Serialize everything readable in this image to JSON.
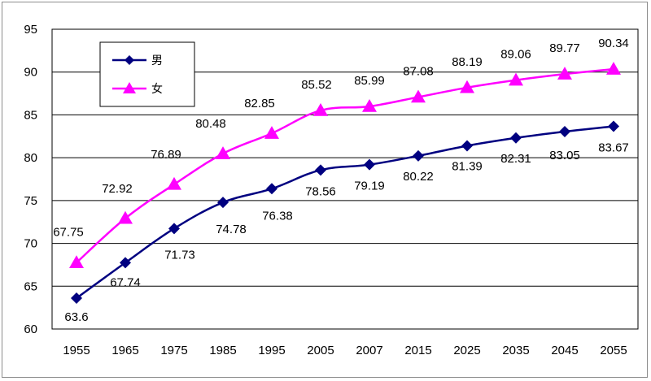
{
  "chart_data": {
    "type": "line",
    "categories": [
      "1955",
      "1965",
      "1975",
      "1985",
      "1995",
      "2005",
      "2007",
      "2015",
      "2025",
      "2035",
      "2045",
      "2055"
    ],
    "series": [
      {
        "name": "男",
        "color": "#000080",
        "marker": "diamond",
        "values": [
          63.6,
          67.74,
          71.73,
          74.78,
          76.38,
          78.56,
          79.19,
          80.22,
          81.39,
          82.31,
          83.05,
          83.67
        ],
        "labels": [
          "63.6",
          "67.74",
          "71.73",
          "74.78",
          "76.38",
          "78.56",
          "79.19",
          "80.22",
          "81.39",
          "82.31",
          "83.05",
          "83.67"
        ]
      },
      {
        "name": "女",
        "color": "#ff00ff",
        "marker": "triangle",
        "values": [
          67.75,
          72.92,
          76.89,
          80.48,
          82.85,
          85.52,
          85.99,
          87.08,
          88.19,
          89.06,
          89.77,
          90.34
        ],
        "labels": [
          "67.75",
          "72.92",
          "76.89",
          "80.48",
          "82.85",
          "85.52",
          "85.99",
          "87.08",
          "88.19",
          "89.06",
          "89.77",
          "90.34"
        ]
      }
    ],
    "ylim": [
      60,
      95
    ],
    "yticks": [
      "60",
      "65",
      "70",
      "75",
      "80",
      "85",
      "90",
      "95"
    ],
    "grid": true,
    "legend_position": "top-left",
    "title": "",
    "xlabel": "",
    "ylabel": ""
  }
}
